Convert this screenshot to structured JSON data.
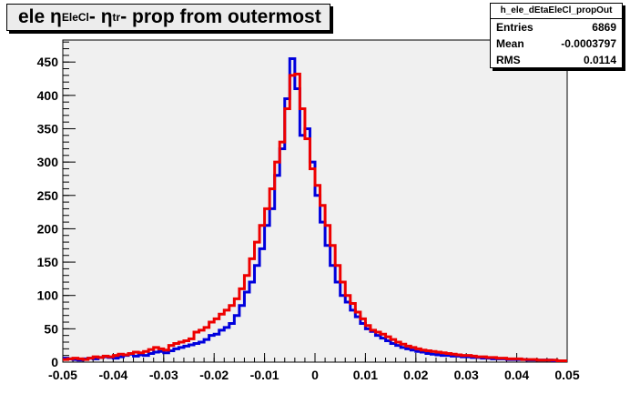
{
  "title": {
    "prefix": "ele η",
    "sub1": "EleCl",
    "mid": " - η",
    "sub2": "tr",
    "suffix": " - prop from outermost"
  },
  "stats": {
    "name": "h_ele_dEtaEleCl_propOut",
    "entries_label": "Entries",
    "entries_value": "6869",
    "mean_label": "Mean",
    "mean_value": "-0.0003797",
    "rms_label": "RMS",
    "rms_value": "0.0114"
  },
  "colors": {
    "frame_bg": "#f0f0f0",
    "series_blue": "#0000dd",
    "series_red": "#ee0000"
  },
  "chart_data": {
    "type": "histogram-step",
    "title": "ele η EleCl - η tr - prop from outermost",
    "xlabel": "",
    "ylabel": "",
    "xlim": [
      -0.05,
      0.05
    ],
    "ylim": [
      0,
      483
    ],
    "bin_width": 0.001,
    "x_ticks": [
      -0.05,
      -0.04,
      -0.03,
      -0.02,
      -0.01,
      0,
      0.01,
      0.02,
      0.03,
      0.04,
      0.05
    ],
    "x_tick_labels": [
      "-0.05",
      "-0.04",
      "-0.03",
      "-0.02",
      "-0.01",
      "0",
      "0.01",
      "0.02",
      "0.03",
      "0.04",
      "0.05"
    ],
    "y_ticks": [
      0,
      50,
      100,
      150,
      200,
      250,
      300,
      350,
      400,
      450
    ],
    "y_tick_labels": [
      "0",
      "50",
      "100",
      "150",
      "200",
      "250",
      "300",
      "350",
      "400",
      "450"
    ],
    "series": [
      {
        "color": "#0000dd",
        "values": [
          6,
          5,
          4,
          3,
          5,
          6,
          5,
          7,
          8,
          7,
          6,
          8,
          10,
          12,
          9,
          11,
          10,
          13,
          15,
          16,
          14,
          17,
          20,
          22,
          24,
          26,
          28,
          30,
          34,
          40,
          42,
          48,
          52,
          58,
          70,
          85,
          105,
          120,
          145,
          170,
          205,
          230,
          280,
          320,
          395,
          455,
          410,
          340,
          350,
          300,
          250,
          210,
          175,
          145,
          120,
          100,
          90,
          78,
          68,
          58,
          50,
          46,
          40,
          36,
          32,
          28,
          25,
          22,
          20,
          18,
          16,
          15,
          13,
          12,
          11,
          10,
          10,
          9,
          9,
          8,
          8,
          7,
          7,
          6,
          6,
          5,
          5,
          5,
          4,
          4,
          4,
          4,
          3,
          3,
          3,
          3,
          3,
          2,
          2,
          2
        ]
      },
      {
        "color": "#ee0000",
        "values": [
          4,
          5,
          6,
          5,
          4,
          6,
          8,
          7,
          9,
          8,
          10,
          12,
          11,
          13,
          15,
          14,
          16,
          19,
          22,
          20,
          18,
          25,
          28,
          30,
          32,
          35,
          45,
          48,
          52,
          60,
          65,
          72,
          78,
          85,
          95,
          110,
          130,
          155,
          180,
          205,
          230,
          260,
          300,
          330,
          380,
          430,
          432,
          380,
          335,
          290,
          265,
          235,
          205,
          175,
          145,
          120,
          100,
          88,
          75,
          65,
          55,
          48,
          45,
          42,
          38,
          34,
          30,
          27,
          24,
          22,
          20,
          18,
          17,
          16,
          15,
          14,
          13,
          12,
          11,
          10,
          10,
          9,
          8,
          8,
          7,
          7,
          6,
          6,
          5,
          5,
          5,
          4,
          4,
          4,
          3,
          3,
          3,
          3,
          2,
          2
        ]
      }
    ]
  }
}
